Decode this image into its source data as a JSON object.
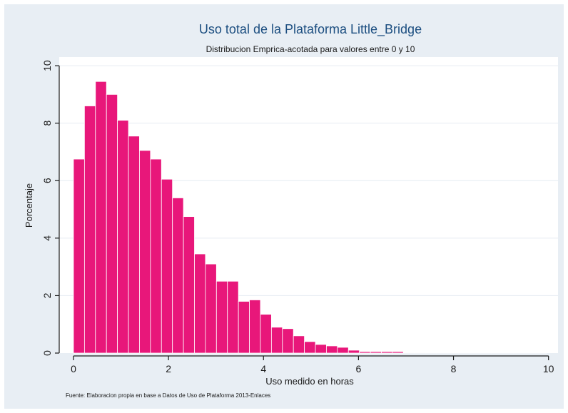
{
  "chart_data": {
    "type": "bar",
    "title": "Uso total de la Plataforma Little_Bridge",
    "subtitle": "Distribucion Emprica-acotada para valores entre 0 y 10",
    "xlabel": "Uso medido en horas",
    "ylabel": "Porcentaje",
    "note": "Fuente: Elaboracion propia en base a Datos de Uso de Plataforma 2013-Enlaces",
    "xlim": [
      -0.3,
      10.2
    ],
    "ylim": [
      0,
      10.3
    ],
    "xticks": [
      0,
      2,
      4,
      6,
      8,
      10
    ],
    "yticks": [
      0,
      2,
      4,
      6,
      8,
      10
    ],
    "grid": true,
    "bar_color": "#e8177a",
    "bin_width": 0.2315,
    "x_start": 0.0,
    "values": [
      6.75,
      8.6,
      9.45,
      9.0,
      8.1,
      7.55,
      7.05,
      6.75,
      6.05,
      5.4,
      4.75,
      3.45,
      3.1,
      2.5,
      2.5,
      1.8,
      1.85,
      1.35,
      0.9,
      0.85,
      0.6,
      0.4,
      0.3,
      0.25,
      0.2,
      0.1,
      0.05,
      0.05,
      0.05,
      0.05,
      0.02,
      0.02,
      0.01,
      0.01,
      0.01,
      0.01,
      0.01,
      0.01,
      0.01,
      0.01,
      0.01,
      0.01,
      0.01
    ]
  }
}
